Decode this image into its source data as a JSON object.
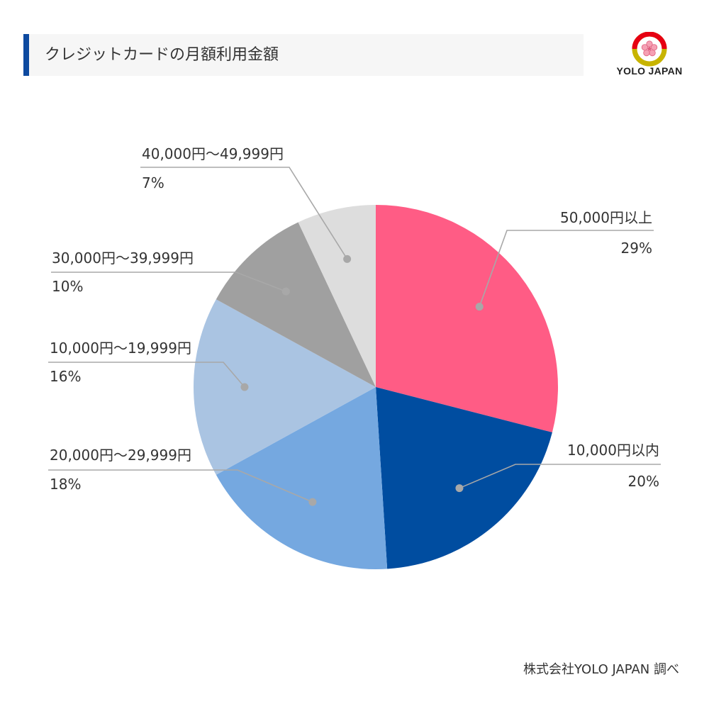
{
  "header": {
    "title": "クレジットカードの月額利用金額"
  },
  "logo": {
    "text": "YOLO JAPAN"
  },
  "source": "株式会社YOLO JAPAN 調べ",
  "colors": {
    "accent": "#0d4aa0",
    "leader": "#a8a8a8"
  },
  "chart_data": {
    "type": "pie",
    "title": "クレジットカードの月額利用金額",
    "slices": [
      {
        "name": "50,000円以上",
        "value": 29,
        "label": "29%",
        "color": "#ff5c85"
      },
      {
        "name": "10,000円以内",
        "value": 20,
        "label": "20%",
        "color": "#004da0"
      },
      {
        "name": "20,000円〜29,999円",
        "value": 18,
        "label": "18%",
        "color": "#75a8e0"
      },
      {
        "name": "10,000円〜19,999円",
        "value": 16,
        "label": "16%",
        "color": "#aac4e2"
      },
      {
        "name": "30,000円〜39,999円",
        "value": 10,
        "label": "10%",
        "color": "#a0a0a0"
      },
      {
        "name": "40,000円〜49,999円",
        "value": 7,
        "label": "7%",
        "color": "#dddddd"
      }
    ]
  }
}
